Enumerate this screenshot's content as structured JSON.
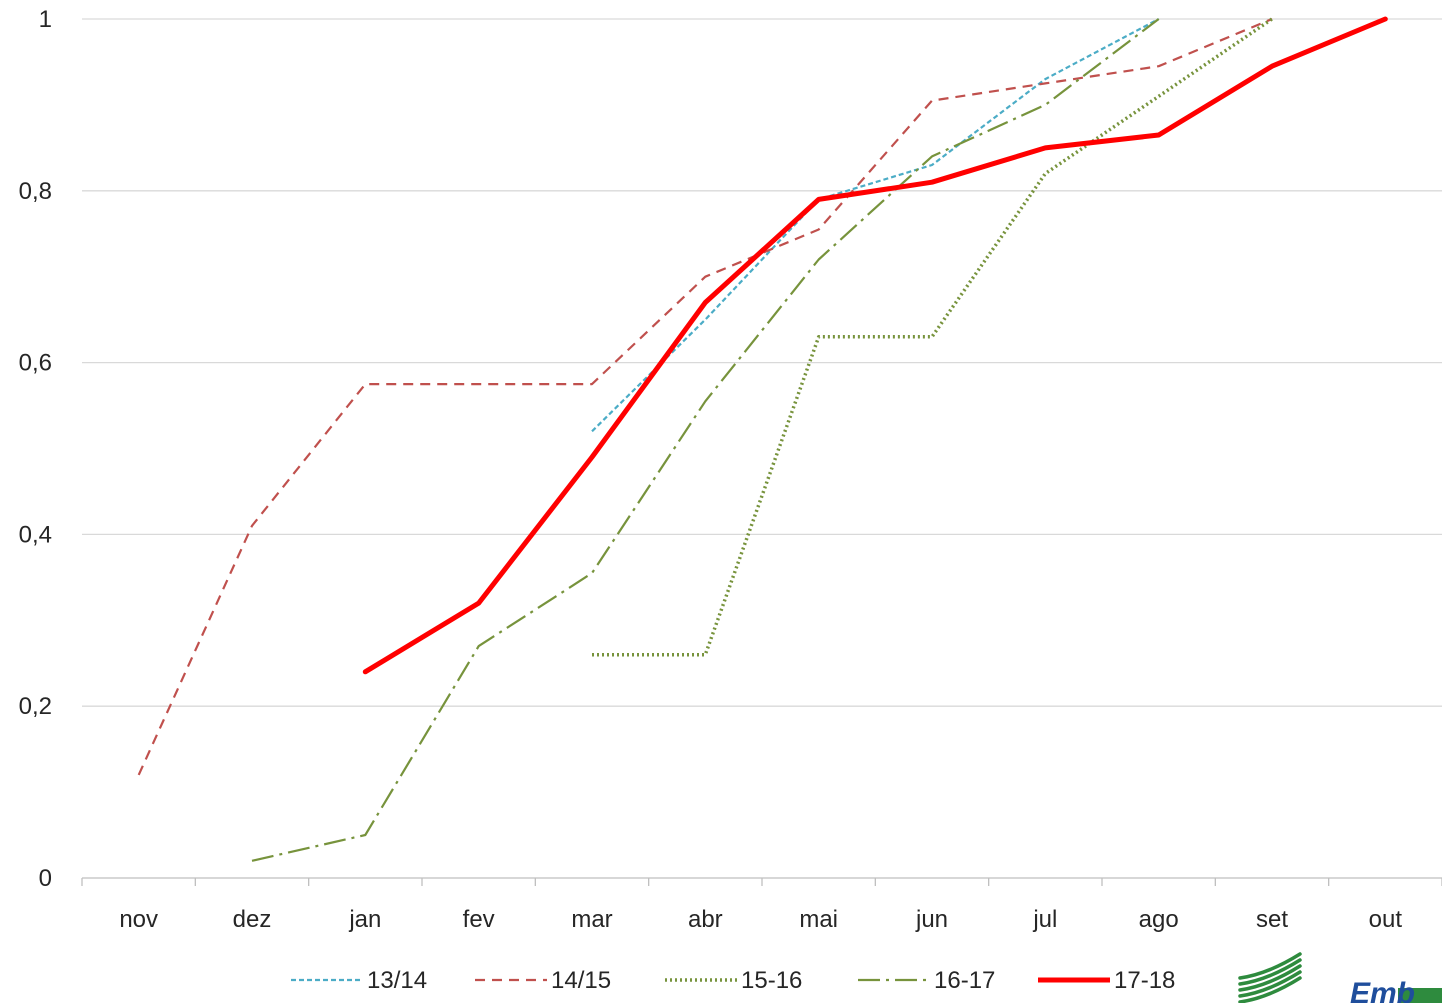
{
  "chart_data": {
    "type": "line",
    "categories": [
      "nov",
      "dez",
      "jan",
      "fev",
      "mar",
      "abr",
      "mai",
      "jun",
      "jul",
      "ago",
      "set",
      "out"
    ],
    "ylim": [
      0,
      1
    ],
    "yticks": [
      0,
      0.2,
      0.4,
      0.6,
      0.8,
      1
    ],
    "ytick_labels": [
      "0",
      "0,2",
      "0,4",
      "0,6",
      "0,8",
      "1"
    ],
    "grid": "horizontal",
    "legend_position": "bottom",
    "series": [
      {
        "name": "13/14",
        "color": "#4bacc6",
        "dash": "5,3",
        "width": 2.2,
        "values": [
          null,
          null,
          null,
          null,
          0.52,
          0.65,
          0.79,
          0.83,
          0.93,
          1.0,
          null,
          null
        ]
      },
      {
        "name": "14/15",
        "color": "#c0504d",
        "dash": "10,7",
        "width": 2.2,
        "values": [
          0.12,
          0.41,
          0.575,
          0.575,
          0.575,
          0.7,
          0.755,
          0.905,
          0.925,
          0.945,
          1.0,
          null
        ]
      },
      {
        "name": "15-16",
        "color": "#77933c",
        "dash": "2,3",
        "width": 3.5,
        "values": [
          null,
          null,
          null,
          null,
          0.26,
          0.26,
          0.63,
          0.63,
          0.82,
          0.91,
          1.0,
          null
        ]
      },
      {
        "name": "16-17",
        "color": "#77933c",
        "dash": "22,6,3,6",
        "width": 2.2,
        "values": [
          null,
          0.02,
          0.05,
          0.27,
          0.355,
          0.555,
          0.72,
          0.84,
          0.9,
          1.0,
          null,
          null
        ]
      },
      {
        "name": "17-18",
        "color": "#ff0000",
        "dash": "",
        "width": 5,
        "values": [
          null,
          null,
          0.24,
          0.32,
          0.49,
          0.67,
          0.79,
          0.81,
          0.85,
          0.865,
          0.945,
          1.0
        ]
      }
    ]
  },
  "logo": {
    "text": "Emb",
    "colors": [
      "#2e8b3e",
      "#1f4e9c"
    ]
  }
}
